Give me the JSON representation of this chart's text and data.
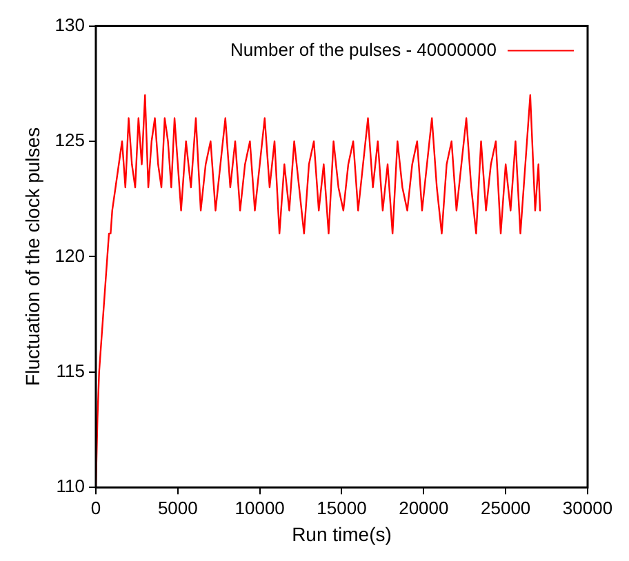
{
  "chart_data": {
    "type": "line",
    "xlabel": "Run time(s)",
    "ylabel": "Fluctuation of the clock pulses",
    "xlim": [
      0,
      30000
    ],
    "xticks": [
      0,
      5000,
      10000,
      15000,
      20000,
      25000,
      30000
    ],
    "ylim": [
      110,
      130
    ],
    "yticks": [
      110,
      115,
      120,
      125,
      130
    ],
    "grid": false,
    "legend": "top right",
    "marker": "none",
    "line_style": "solid",
    "series": [
      {
        "name": "Number of the pulses - 40000000",
        "color": "#ff0000",
        "x": [
          0,
          100,
          200,
          300,
          400,
          500,
          600,
          700,
          800,
          900,
          1000,
          1200,
          1400,
          1600,
          1800,
          2000,
          2200,
          2400,
          2600,
          2800,
          3000,
          3200,
          3400,
          3600,
          3800,
          4000,
          4200,
          4400,
          4600,
          4800,
          5000,
          5200,
          5500,
          5800,
          6100,
          6400,
          6700,
          7000,
          7300,
          7600,
          7900,
          8200,
          8500,
          8800,
          9100,
          9400,
          9700,
          10000,
          10300,
          10600,
          10900,
          11200,
          11500,
          11800,
          12100,
          12400,
          12700,
          13000,
          13300,
          13600,
          13900,
          14200,
          14500,
          14800,
          15100,
          15400,
          15700,
          16000,
          16300,
          16600,
          16900,
          17200,
          17500,
          17800,
          18100,
          18400,
          18700,
          19000,
          19300,
          19600,
          19900,
          20200,
          20500,
          20800,
          21100,
          21400,
          21700,
          22000,
          22300,
          22600,
          22900,
          23200,
          23500,
          23800,
          24100,
          24400,
          24700,
          25000,
          25300,
          25600,
          25900,
          26200,
          26500,
          26800,
          27000,
          27100
        ],
        "values": [
          110,
          113,
          115,
          116,
          117,
          118,
          119,
          120,
          121,
          121,
          122,
          123,
          124,
          125,
          123,
          126,
          124,
          123,
          126,
          124,
          127,
          123,
          125,
          126,
          124,
          123,
          126,
          125,
          123,
          126,
          124,
          122,
          125,
          123,
          126,
          122,
          124,
          125,
          122,
          124,
          126,
          123,
          125,
          122,
          124,
          125,
          122,
          124,
          126,
          123,
          125,
          121,
          124,
          122,
          125,
          123,
          121,
          124,
          125,
          122,
          124,
          121,
          125,
          123,
          122,
          124,
          125,
          122,
          124,
          126,
          123,
          125,
          122,
          124,
          121,
          125,
          123,
          122,
          124,
          125,
          122,
          124,
          126,
          123,
          121,
          124,
          125,
          122,
          124,
          126,
          123,
          121,
          125,
          122,
          124,
          125,
          121,
          124,
          122,
          125,
          121,
          124,
          127,
          122,
          124,
          122
        ]
      }
    ]
  }
}
